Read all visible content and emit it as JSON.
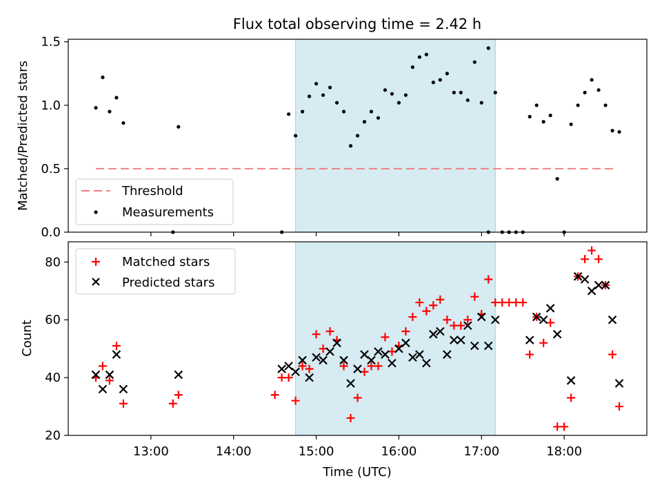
{
  "chart_data": [
    {
      "type": "scatter",
      "title": "Flux total observing time = 2.42 h",
      "ylabel": "Matched/Predicted stars",
      "xlim": [
        "12:00",
        "19:00"
      ],
      "ylim": [
        0,
        1.5
      ],
      "yticks": [
        0.0,
        0.5,
        1.0,
        1.5
      ],
      "ytick_labels": [
        "0.0",
        "0.5",
        "1.0",
        "1.5"
      ],
      "grid": false,
      "legend_position": "lower-left",
      "shaded_interval": [
        "14:45",
        "17:10"
      ],
      "threshold": {
        "name": "Threshold",
        "y": 0.5,
        "x_range": [
          "12:20",
          "18:38"
        ],
        "color": "#f08080"
      },
      "series": [
        {
          "name": "Measurements",
          "color": "#000000",
          "x": [
            "12:20",
            "12:25",
            "12:30",
            "12:35",
            "12:40",
            "13:16",
            "13:20",
            "14:40",
            "14:50",
            "14:55",
            "15:00",
            "15:05",
            "15:10",
            "15:15",
            "15:20",
            "15:25",
            "15:30",
            "15:35",
            "15:40",
            "15:45",
            "15:50",
            "15:55",
            "16:00",
            "16:05",
            "16:10",
            "16:15",
            "16:20",
            "16:25",
            "16:30",
            "16:35",
            "16:40",
            "16:45",
            "16:50",
            "16:55",
            "17:00",
            "17:05",
            "17:10",
            "17:15",
            "17:20",
            "17:25",
            "17:30",
            "17:35",
            "17:40",
            "17:45",
            "17:50",
            "17:55",
            "18:00",
            "18:05",
            "18:10",
            "18:15",
            "18:20",
            "18:25",
            "18:30",
            "18:35",
            "18:40",
            "14:35",
            "14:45",
            "17:05"
          ],
          "y": [
            0.98,
            1.22,
            0.95,
            1.06,
            0.86,
            0.0,
            0.83,
            0.93,
            0.95,
            1.07,
            1.17,
            1.08,
            1.14,
            1.02,
            0.95,
            0.68,
            0.76,
            0.87,
            0.95,
            0.9,
            1.12,
            1.09,
            1.02,
            1.08,
            1.3,
            1.38,
            1.4,
            1.18,
            1.2,
            1.25,
            1.1,
            1.1,
            1.04,
            1.34,
            1.02,
            1.45,
            1.1,
            0.0,
            0.0,
            0.0,
            0.0,
            0.91,
            1.0,
            0.87,
            0.92,
            0.42,
            0.0,
            0.85,
            1.0,
            1.1,
            1.2,
            1.12,
            1.0,
            0.8,
            0.79,
            0.0,
            0.76,
            0.0
          ]
        }
      ]
    },
    {
      "type": "scatter",
      "xlabel": "Time (UTC)",
      "ylabel": "Count",
      "xlim": [
        "12:00",
        "19:00"
      ],
      "ylim": [
        20,
        87
      ],
      "yticks": [
        20,
        40,
        60,
        80
      ],
      "ytick_labels": [
        "20",
        "40",
        "60",
        "80"
      ],
      "xticks": [
        "13:00",
        "14:00",
        "15:00",
        "16:00",
        "17:00",
        "18:00"
      ],
      "grid": false,
      "legend_position": "upper-left",
      "shaded_interval": [
        "14:45",
        "17:10"
      ],
      "series": [
        {
          "name": "Matched stars",
          "color": "#ff0000",
          "marker": "plus",
          "x": [
            "12:20",
            "12:25",
            "12:30",
            "12:35",
            "12:40",
            "13:16",
            "13:20",
            "14:30",
            "14:35",
            "14:40",
            "14:45",
            "14:50",
            "14:55",
            "15:00",
            "15:05",
            "15:10",
            "15:15",
            "15:20",
            "15:25",
            "15:30",
            "15:35",
            "15:40",
            "15:45",
            "15:50",
            "15:55",
            "16:00",
            "16:05",
            "16:10",
            "16:15",
            "16:20",
            "16:25",
            "16:30",
            "16:35",
            "16:40",
            "16:45",
            "16:50",
            "16:55",
            "17:00",
            "17:05",
            "17:10",
            "17:15",
            "17:20",
            "17:25",
            "17:30",
            "17:35",
            "17:40",
            "17:45",
            "17:50",
            "17:55",
            "18:00",
            "18:05",
            "18:10",
            "18:15",
            "18:20",
            "18:25",
            "18:30",
            "18:35",
            "18:40"
          ],
          "y": [
            40,
            44,
            39,
            51,
            31,
            31,
            34,
            34,
            40,
            40,
            32,
            44,
            43,
            55,
            50,
            56,
            53,
            44,
            26,
            33,
            42,
            44,
            44,
            54,
            49,
            51,
            56,
            61,
            66,
            63,
            65,
            67,
            60,
            58,
            58,
            60,
            68,
            62,
            74,
            66,
            66,
            66,
            66,
            66,
            48,
            61,
            52,
            59,
            23,
            23,
            33,
            75,
            81,
            84,
            81,
            72,
            48,
            30
          ]
        },
        {
          "name": "Predicted stars",
          "color": "#000000",
          "marker": "x",
          "x": [
            "12:20",
            "12:25",
            "12:30",
            "12:35",
            "12:40",
            "13:20",
            "14:35",
            "14:40",
            "14:45",
            "14:50",
            "14:55",
            "15:00",
            "15:05",
            "15:10",
            "15:15",
            "15:20",
            "15:25",
            "15:30",
            "15:35",
            "15:40",
            "15:45",
            "15:50",
            "15:55",
            "16:00",
            "16:05",
            "16:10",
            "16:15",
            "16:20",
            "16:25",
            "16:30",
            "16:35",
            "16:40",
            "16:45",
            "16:50",
            "16:55",
            "17:00",
            "17:05",
            "17:10",
            "17:35",
            "17:40",
            "17:45",
            "17:50",
            "17:55",
            "18:05",
            "18:10",
            "18:15",
            "18:20",
            "18:25",
            "18:30",
            "18:35",
            "18:40"
          ],
          "y": [
            41,
            36,
            41,
            48,
            36,
            41,
            43,
            44,
            42,
            46,
            40,
            47,
            46,
            49,
            52,
            46,
            38,
            43,
            48,
            46,
            49,
            48,
            45,
            50,
            52,
            47,
            48,
            45,
            55,
            56,
            48,
            53,
            53,
            58,
            51,
            61,
            51,
            60,
            53,
            61,
            60,
            64,
            55,
            39,
            75,
            74,
            70,
            72,
            72,
            60,
            38
          ]
        }
      ]
    }
  ]
}
